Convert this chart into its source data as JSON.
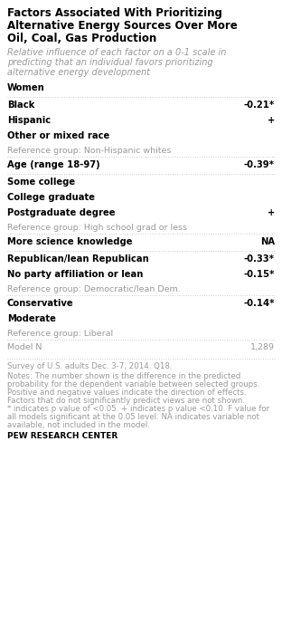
{
  "title_lines": [
    "Factors Associated With Prioritizing",
    "Alternative Energy Sources Over More",
    "Oil, Coal, Gas Production"
  ],
  "subtitle_lines": [
    "Relative influence of each factor on a 0-1 scale in",
    "predicting that an individual favors prioritizing",
    "alternative energy development"
  ],
  "background_color": "#ffffff",
  "rows": [
    {
      "label": "Women",
      "value": "",
      "bold": true,
      "ref": false,
      "separator_above": false
    },
    {
      "label": "Black",
      "value": "-0.21*",
      "bold": true,
      "ref": false,
      "separator_above": true
    },
    {
      "label": "Hispanic",
      "value": "+",
      "bold": true,
      "ref": false,
      "separator_above": false
    },
    {
      "label": "Other or mixed race",
      "value": "",
      "bold": true,
      "ref": false,
      "separator_above": false
    },
    {
      "label": "Reference group: Non-Hispanic whites",
      "value": "",
      "bold": false,
      "ref": true,
      "separator_above": false
    },
    {
      "label": "Age (range 18-97)",
      "value": "-0.39*",
      "bold": true,
      "ref": false,
      "separator_above": true
    },
    {
      "label": "Some college",
      "value": "",
      "bold": true,
      "ref": false,
      "separator_above": true
    },
    {
      "label": "College graduate",
      "value": "",
      "bold": true,
      "ref": false,
      "separator_above": false
    },
    {
      "label": "Postgraduate degree",
      "value": "+",
      "bold": true,
      "ref": false,
      "separator_above": false
    },
    {
      "label": "Reference group: High school grad or less",
      "value": "",
      "bold": false,
      "ref": true,
      "separator_above": false
    },
    {
      "label": "More science knowledge",
      "value": "NA",
      "bold": true,
      "ref": false,
      "separator_above": true
    },
    {
      "label": "Republican/lean Republican",
      "value": "-0.33*",
      "bold": true,
      "ref": false,
      "separator_above": true
    },
    {
      "label": "No party affiliation or lean",
      "value": "-0.15*",
      "bold": true,
      "ref": false,
      "separator_above": false
    },
    {
      "label": "Reference group: Democratic/lean Dem.",
      "value": "",
      "bold": false,
      "ref": true,
      "separator_above": false
    },
    {
      "label": "Conservative",
      "value": "-0.14*",
      "bold": true,
      "ref": false,
      "separator_above": true
    },
    {
      "label": "Moderate",
      "value": "",
      "bold": true,
      "ref": false,
      "separator_above": false
    },
    {
      "label": "Reference group: Liberal",
      "value": "",
      "bold": false,
      "ref": true,
      "separator_above": false
    },
    {
      "label": "Model N",
      "value": "1,289",
      "bold": false,
      "ref": false,
      "separator_above": true
    }
  ],
  "footer_survey": "Survey of U.S. adults Dec. 3-7, 2014. Q18.",
  "footer_notes_lines": [
    "Notes: The number shown is the difference in the predicted",
    "probability for the dependent variable between selected groups.",
    "Positive and negative values indicate the direction of effects.",
    "Factors that do not significantly predict views are not shown.",
    "* indicates p value of <0.05. + indicates p value <0.10. F value for",
    "all models significant at the 0.05 level. NA indicates variable not",
    "available, not included in the model."
  ],
  "footer_source": "PEW RESEARCH CENTER",
  "text_color": "#000000",
  "ref_color": "#999999",
  "model_color": "#999999",
  "separator_color": "#bbbbbb",
  "value_color": "#000000",
  "title_fontsize": 8.5,
  "subtitle_fontsize": 7.0,
  "row_fontsize": 7.2,
  "ref_fontsize": 6.8,
  "footer_fontsize": 6.2,
  "source_fontsize": 6.5
}
